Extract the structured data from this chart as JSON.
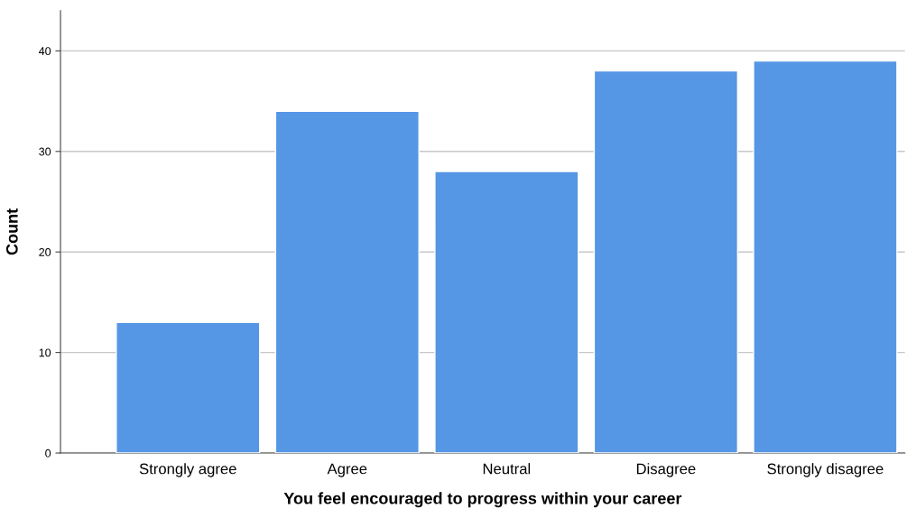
{
  "chart_data": {
    "type": "bar",
    "xlabel": "You feel encouraged to progress within your career",
    "ylabel": "Count",
    "categories": [
      "Strongly agree",
      "Agree",
      "Neutral",
      "Disagree",
      "Strongly disagree"
    ],
    "values": [
      13,
      34,
      28,
      38,
      39
    ],
    "color": "#5596e5",
    "ylim": [
      0,
      44
    ],
    "yticks": [
      0,
      10,
      20,
      30,
      40
    ],
    "grid": "y"
  }
}
